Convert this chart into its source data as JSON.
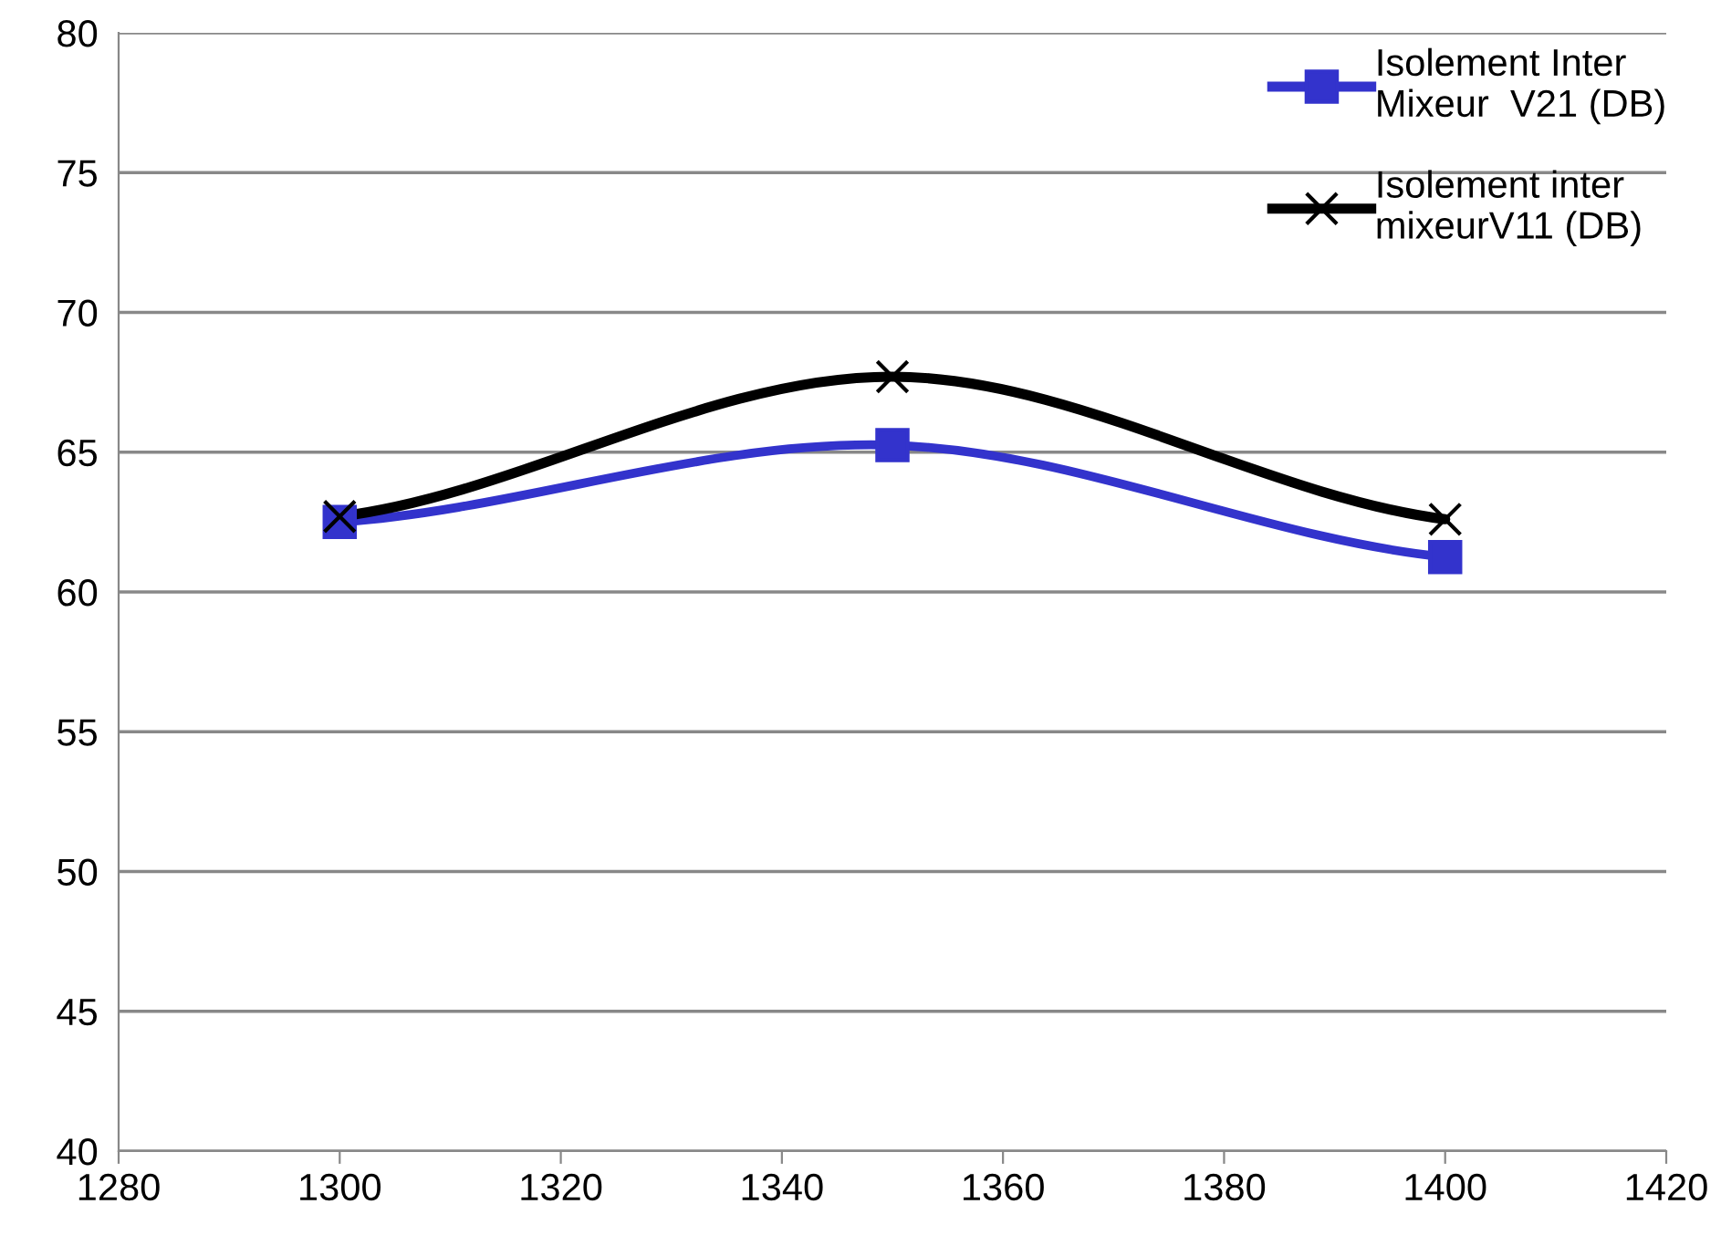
{
  "chart_data": {
    "type": "line",
    "x": [
      1300,
      1350,
      1400
    ],
    "series": [
      {
        "name": "Isolement Inter\nMixeur  V21 (DB)",
        "color": "#3333cc",
        "marker": "square",
        "values": [
          62.5,
          65.25,
          61.25
        ]
      },
      {
        "name": "Isolement inter\nmixeurV11 (DB)",
        "color": "#000000",
        "marker": "cross",
        "values": [
          62.7,
          67.7,
          62.6
        ]
      }
    ],
    "xlim": [
      1280,
      1420
    ],
    "xticks": [
      1280,
      1300,
      1320,
      1340,
      1360,
      1380,
      1400,
      1420
    ],
    "ylim": [
      40,
      80
    ],
    "yticks": [
      40,
      45,
      50,
      55,
      60,
      65,
      70,
      75,
      80
    ],
    "grid": "y",
    "legend": "top right",
    "line_style": "solid"
  }
}
